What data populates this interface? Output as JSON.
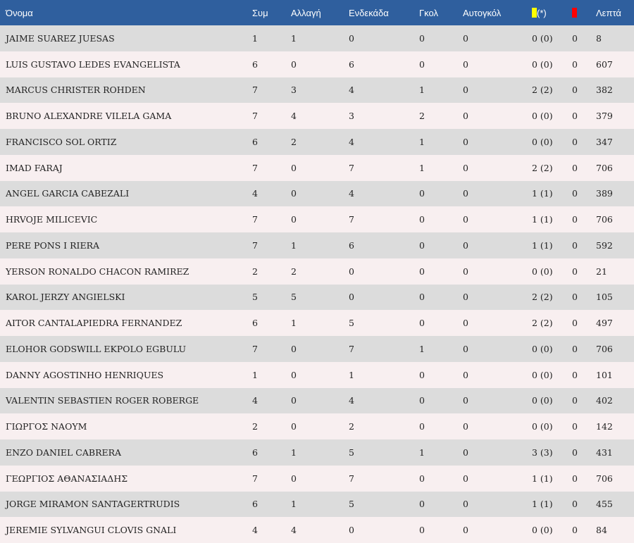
{
  "colors": {
    "header_bg": "#2f5f9e",
    "row_odd": "#dcdcdc",
    "row_even": "#f8eff0",
    "yellow_card": "#ffff00",
    "red_card": "#ff0000"
  },
  "columns": {
    "name": "Όνομα",
    "apps": "Συμ",
    "subs": "Αλλαγή",
    "starting": "Ενδεκάδα",
    "goals": "Γκολ",
    "own_goals": "Αυτογκόλ",
    "yellow_suffix": "(*)",
    "yellow_icon": "yellow-card-icon",
    "red_icon": "red-card-icon",
    "minutes": "Λεπτά"
  },
  "players": [
    {
      "name": "JAIME SUAREZ JUESAS",
      "apps": "1",
      "subs": "1",
      "starting": "0",
      "goals": "0",
      "own_goals": "0",
      "yellow": "0 (0)",
      "red": "0",
      "minutes": "8"
    },
    {
      "name": "LUIS GUSTAVO LEDES EVANGELISTA",
      "apps": "6",
      "subs": "0",
      "starting": "6",
      "goals": "0",
      "own_goals": "0",
      "yellow": "0 (0)",
      "red": "0",
      "minutes": "607"
    },
    {
      "name": "MARCUS CHRISTER ROHDEN",
      "apps": "7",
      "subs": "3",
      "starting": "4",
      "goals": "1",
      "own_goals": "0",
      "yellow": "2 (2)",
      "red": "0",
      "minutes": "382"
    },
    {
      "name": "BRUNO ALEXANDRE VILELA GAMA",
      "apps": "7",
      "subs": "4",
      "starting": "3",
      "goals": "2",
      "own_goals": "0",
      "yellow": "0 (0)",
      "red": "0",
      "minutes": "379"
    },
    {
      "name": "FRANCISCO SOL ORTIZ",
      "apps": "6",
      "subs": "2",
      "starting": "4",
      "goals": "1",
      "own_goals": "0",
      "yellow": "0 (0)",
      "red": "0",
      "minutes": "347"
    },
    {
      "name": "IMAD FARAJ",
      "apps": "7",
      "subs": "0",
      "starting": "7",
      "goals": "1",
      "own_goals": "0",
      "yellow": "2 (2)",
      "red": "0",
      "minutes": "706"
    },
    {
      "name": "ANGEL GARCIA CABEZALI",
      "apps": "4",
      "subs": "0",
      "starting": "4",
      "goals": "0",
      "own_goals": "0",
      "yellow": "1 (1)",
      "red": "0",
      "minutes": "389"
    },
    {
      "name": "HRVOJE MILICEVIC",
      "apps": "7",
      "subs": "0",
      "starting": "7",
      "goals": "0",
      "own_goals": "0",
      "yellow": "1 (1)",
      "red": "0",
      "minutes": "706"
    },
    {
      "name": "PERE PONS I RIERA",
      "apps": "7",
      "subs": "1",
      "starting": "6",
      "goals": "0",
      "own_goals": "0",
      "yellow": "1 (1)",
      "red": "0",
      "minutes": "592"
    },
    {
      "name": "YERSON RONALDO CHACON RAMIREZ",
      "apps": "2",
      "subs": "2",
      "starting": "0",
      "goals": "0",
      "own_goals": "0",
      "yellow": "0 (0)",
      "red": "0",
      "minutes": "21"
    },
    {
      "name": "KAROL JERZY ANGIELSKI",
      "apps": "5",
      "subs": "5",
      "starting": "0",
      "goals": "0",
      "own_goals": "0",
      "yellow": "2 (2)",
      "red": "0",
      "minutes": "105"
    },
    {
      "name": "AITOR CANTALAPIEDRA FERNANDEZ",
      "apps": "6",
      "subs": "1",
      "starting": "5",
      "goals": "0",
      "own_goals": "0",
      "yellow": "2 (2)",
      "red": "0",
      "minutes": "497"
    },
    {
      "name": "ELOHOR GODSWILL EKPOLO EGBULU",
      "apps": "7",
      "subs": "0",
      "starting": "7",
      "goals": "1",
      "own_goals": "0",
      "yellow": "0 (0)",
      "red": "0",
      "minutes": "706"
    },
    {
      "name": "DANNY AGOSTINHO HENRIQUES",
      "apps": "1",
      "subs": "0",
      "starting": "1",
      "goals": "0",
      "own_goals": "0",
      "yellow": "0 (0)",
      "red": "0",
      "minutes": "101"
    },
    {
      "name": "VALENTIN SEBASTIEN ROGER ROBERGE",
      "apps": "4",
      "subs": "0",
      "starting": "4",
      "goals": "0",
      "own_goals": "0",
      "yellow": "0 (0)",
      "red": "0",
      "minutes": "402"
    },
    {
      "name": "ΓΙΩΡΓΟΣ ΝΑΟΥΜ",
      "apps": "2",
      "subs": "0",
      "starting": "2",
      "goals": "0",
      "own_goals": "0",
      "yellow": "0 (0)",
      "red": "0",
      "minutes": "142"
    },
    {
      "name": "ENZO DANIEL CABRERA",
      "apps": "6",
      "subs": "1",
      "starting": "5",
      "goals": "1",
      "own_goals": "0",
      "yellow": "3 (3)",
      "red": "0",
      "minutes": "431"
    },
    {
      "name": "ΓΕΩΡΓΙΟΣ ΑΘΑΝΑΣΙΑΔΗΣ",
      "apps": "7",
      "subs": "0",
      "starting": "7",
      "goals": "0",
      "own_goals": "0",
      "yellow": "1 (1)",
      "red": "0",
      "minutes": "706"
    },
    {
      "name": "JORGE MIRAMON SANTAGERTRUDIS",
      "apps": "6",
      "subs": "1",
      "starting": "5",
      "goals": "0",
      "own_goals": "0",
      "yellow": "1 (1)",
      "red": "0",
      "minutes": "455"
    },
    {
      "name": "JEREMIE SYLVANGUI CLOVIS GNALI",
      "apps": "4",
      "subs": "4",
      "starting": "0",
      "goals": "0",
      "own_goals": "0",
      "yellow": "0 (0)",
      "red": "0",
      "minutes": "84"
    }
  ]
}
